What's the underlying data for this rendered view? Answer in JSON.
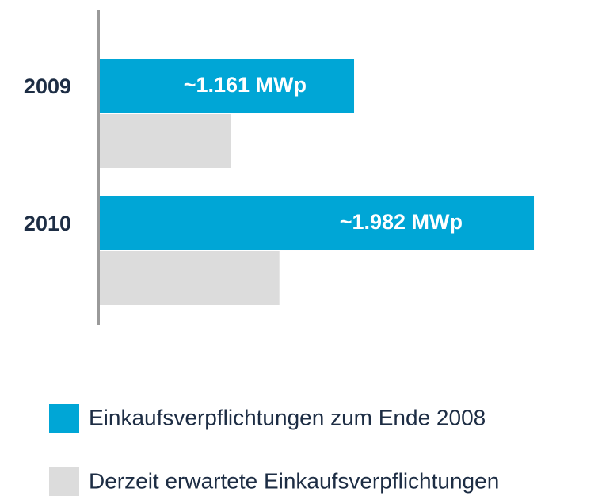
{
  "chart_data": {
    "type": "bar",
    "orientation": "horizontal",
    "categories": [
      "2009",
      "2010"
    ],
    "series": [
      {
        "name": "Einkaufsverpflichtungen zum Ende 2008",
        "color": "#00a6d6",
        "values": [
          1161,
          1982
        ],
        "value_labels": [
          "~1.161 MWp",
          "~1.982 MWp"
        ]
      },
      {
        "name": "Derzeit erwartete Einkaufsverpflichtungen",
        "color": "#dcdcdc",
        "values": [
          600,
          820
        ]
      }
    ],
    "xlim": [
      0,
      2000
    ]
  }
}
